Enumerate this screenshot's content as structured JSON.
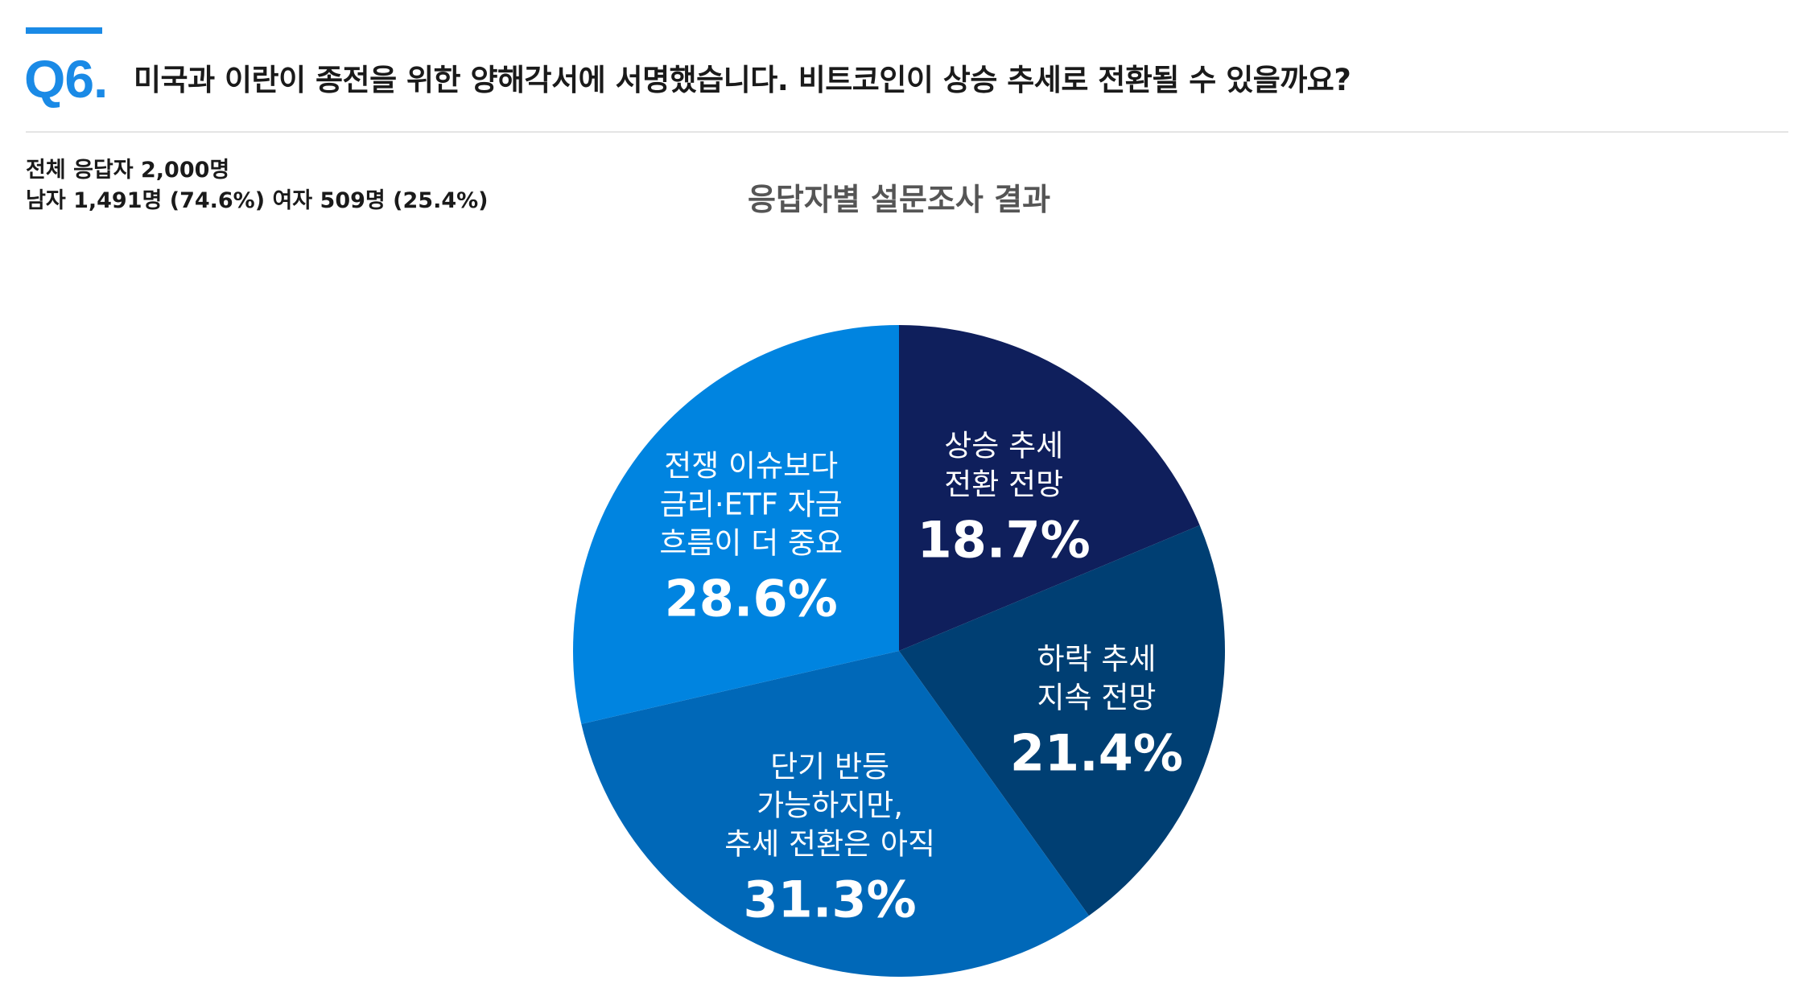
{
  "header": {
    "question_number": "Q6.",
    "question_text": "미국과 이란이 종전을 위한 양해각서에 서명했습니다. 비트코인이 상승 추세로 전환될 수 있을까요?"
  },
  "respondents": {
    "total_line": "전체 응답자 2,000명",
    "gender_line": "남자 1,491명 (74.6%) 여자 509명 (25.4%)"
  },
  "colors": {
    "accent": "#1a8ae6",
    "slices": [
      "#0f1f5c",
      "#003f73",
      "#0068b8",
      "#0084e0"
    ]
  },
  "chart_data": {
    "type": "pie",
    "title": "응답자별 설문조사 결과",
    "slices": [
      {
        "label_lines": [
          "상승 추세",
          "전환 전망"
        ],
        "value": 18.7,
        "value_label": "18.7%",
        "color": "#0f1f5c"
      },
      {
        "label_lines": [
          "하락 추세",
          "지속 전망"
        ],
        "value": 21.4,
        "value_label": "21.4%",
        "color": "#003f73"
      },
      {
        "label_lines": [
          "단기 반등",
          "가능하지만,",
          "추세 전환은 아직"
        ],
        "value": 31.3,
        "value_label": "31.3%",
        "color": "#0068b8"
      },
      {
        "label_lines": [
          "전쟁 이슈보다",
          "금리·ETF 자금",
          "흐름이 더 중요"
        ],
        "value": 28.6,
        "value_label": "28.6%",
        "color": "#0084e0"
      }
    ]
  }
}
